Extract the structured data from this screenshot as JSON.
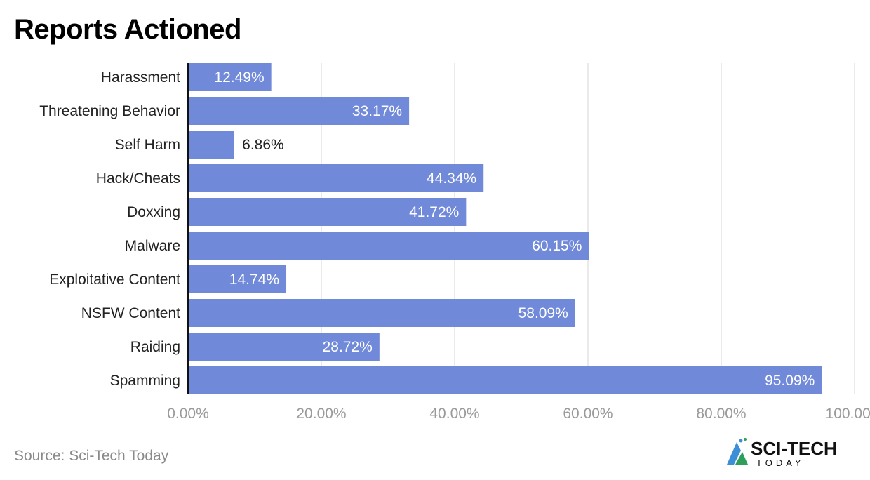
{
  "chart_data": {
    "type": "bar",
    "orientation": "horizontal",
    "title": "Reports Actioned",
    "categories": [
      "Harassment",
      "Threatening Behavior",
      "Self Harm",
      "Hack/Cheats",
      "Doxxing",
      "Malware",
      "Exploitative Content",
      "NSFW Content",
      "Raiding",
      "Spamming"
    ],
    "values": [
      12.49,
      33.17,
      6.86,
      44.34,
      41.72,
      60.15,
      14.74,
      58.09,
      28.72,
      95.09
    ],
    "value_labels": [
      "12.49%",
      "33.17%",
      "6.86%",
      "44.34%",
      "41.72%",
      "60.15%",
      "14.74%",
      "58.09%",
      "28.72%",
      "95.09%"
    ],
    "xlim": [
      0,
      100
    ],
    "x_ticks": [
      0,
      20,
      40,
      60,
      80,
      100
    ],
    "x_tick_labels": [
      "0.00%",
      "20.00%",
      "40.00%",
      "60.00%",
      "80.00%",
      "100.00%"
    ],
    "xlabel": "",
    "ylabel": "",
    "grid": true,
    "bar_color": "#7089d9"
  },
  "source": "Source: Sci-Tech Today",
  "logo": {
    "line1": "SCI-TECH",
    "line2": "TODAY"
  }
}
